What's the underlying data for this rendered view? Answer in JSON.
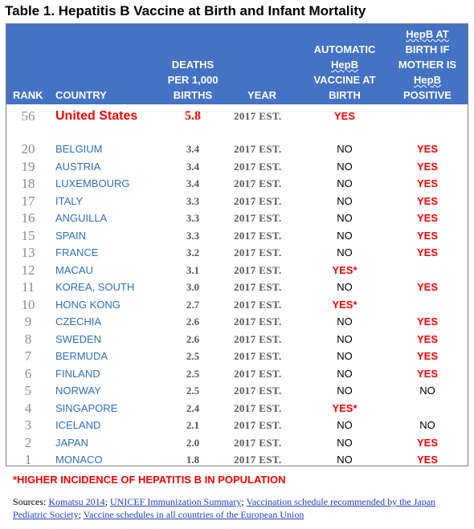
{
  "title": "Table 1. Hepatitis B Vaccine at Birth and Infant Mortality",
  "header": {
    "rank": "RANK",
    "country": "COUNTRY",
    "deaths": [
      "DEATHS",
      "PER 1,000",
      "BIRTHS"
    ],
    "year": "YEAR",
    "automatic": [
      "AUTOMATIC",
      "HepB",
      "VACCINE AT",
      "BIRTH"
    ],
    "mother": [
      "HepB AT",
      "BIRTH IF",
      "MOTHER IS",
      "HepB",
      "POSITIVE"
    ]
  },
  "colors": {
    "header_bg": "#4472c4",
    "yes": "#ff0000",
    "country_link": "#2e6fb7"
  },
  "us_row": {
    "rank": "56",
    "country": "United States",
    "deaths": "5.8",
    "year": "2017 EST.",
    "automatic": "YES",
    "mother": ""
  },
  "rows": [
    {
      "rank": "20",
      "country": "BELGIUM",
      "deaths": "3.4",
      "year": "2017 EST.",
      "automatic": "NO",
      "mother": "YES"
    },
    {
      "rank": "19",
      "country": "AUSTRIA",
      "deaths": "3.4",
      "year": "2017 EST.",
      "automatic": "NO",
      "mother": "YES"
    },
    {
      "rank": "18",
      "country": "LUXEMBOURG",
      "deaths": "3.4",
      "year": "2017 EST.",
      "automatic": "NO",
      "mother": "YES"
    },
    {
      "rank": "17",
      "country": "ITALY",
      "deaths": "3.3",
      "year": "2017 EST.",
      "automatic": "NO",
      "mother": "YES"
    },
    {
      "rank": "16",
      "country": "ANGUILLA",
      "deaths": "3.3",
      "year": "2017 EST.",
      "automatic": "NO",
      "mother": "YES"
    },
    {
      "rank": "15",
      "country": "SPAIN",
      "deaths": "3.3",
      "year": "2017 EST.",
      "automatic": "NO",
      "mother": "YES"
    },
    {
      "rank": "13",
      "country": "FRANCE",
      "deaths": "3.2",
      "year": "2017 EST.",
      "automatic": "NO",
      "mother": "YES"
    },
    {
      "rank": "12",
      "country": "MACAU",
      "deaths": "3.1",
      "year": "2017 EST.",
      "automatic": "YES*",
      "mother": ""
    },
    {
      "rank": "11",
      "country": "KOREA, SOUTH",
      "deaths": "3.0",
      "year": "2017 EST.",
      "automatic": "NO",
      "mother": "YES"
    },
    {
      "rank": "10",
      "country": "HONG KONG",
      "deaths": "2.7",
      "year": "2017 EST.",
      "automatic": "YES*",
      "mother": ""
    },
    {
      "rank": "9",
      "country": "CZECHIA",
      "deaths": "2.6",
      "year": "2017 EST.",
      "automatic": "NO",
      "mother": "YES"
    },
    {
      "rank": "8",
      "country": "SWEDEN",
      "deaths": "2.6",
      "year": "2017 EST.",
      "automatic": "NO",
      "mother": "YES"
    },
    {
      "rank": "7",
      "country": "BERMUDA",
      "deaths": "2.5",
      "year": "2017 EST.",
      "automatic": "NO",
      "mother": "YES"
    },
    {
      "rank": "6",
      "country": "FINLAND",
      "deaths": "2.5",
      "year": "2017 EST.",
      "automatic": "NO",
      "mother": "YES"
    },
    {
      "rank": "5",
      "country": "NORWAY",
      "deaths": "2.5",
      "year": "2017 EST.",
      "automatic": "NO",
      "mother": "NO"
    },
    {
      "rank": "4",
      "country": "SINGAPORE",
      "deaths": "2.4",
      "year": "2017 EST.",
      "automatic": "YES*",
      "mother": ""
    },
    {
      "rank": "3",
      "country": "ICELAND",
      "deaths": "2.1",
      "year": "2017 EST.",
      "automatic": "NO",
      "mother": "NO"
    },
    {
      "rank": "2",
      "country": "JAPAN",
      "deaths": "2.0",
      "year": "2017 EST.",
      "automatic": "NO",
      "mother": "YES"
    },
    {
      "rank": "1",
      "country": "MONACO",
      "deaths": "1.8",
      "year": "2017 EST.",
      "automatic": "NO",
      "mother": "YES"
    }
  ],
  "footnote": "*HIGHER INCIDENCE OF HEPATITIS B IN POPULATION",
  "sources": {
    "prefix": "Sources: ",
    "links": [
      "Komatsu 2014",
      "UNICEF Immunization Summary",
      "Vaccination schedule recommended by the Japan Pediatric Society",
      "Vaccine schedules in all countries of the European Union"
    ],
    "separator": "; "
  }
}
